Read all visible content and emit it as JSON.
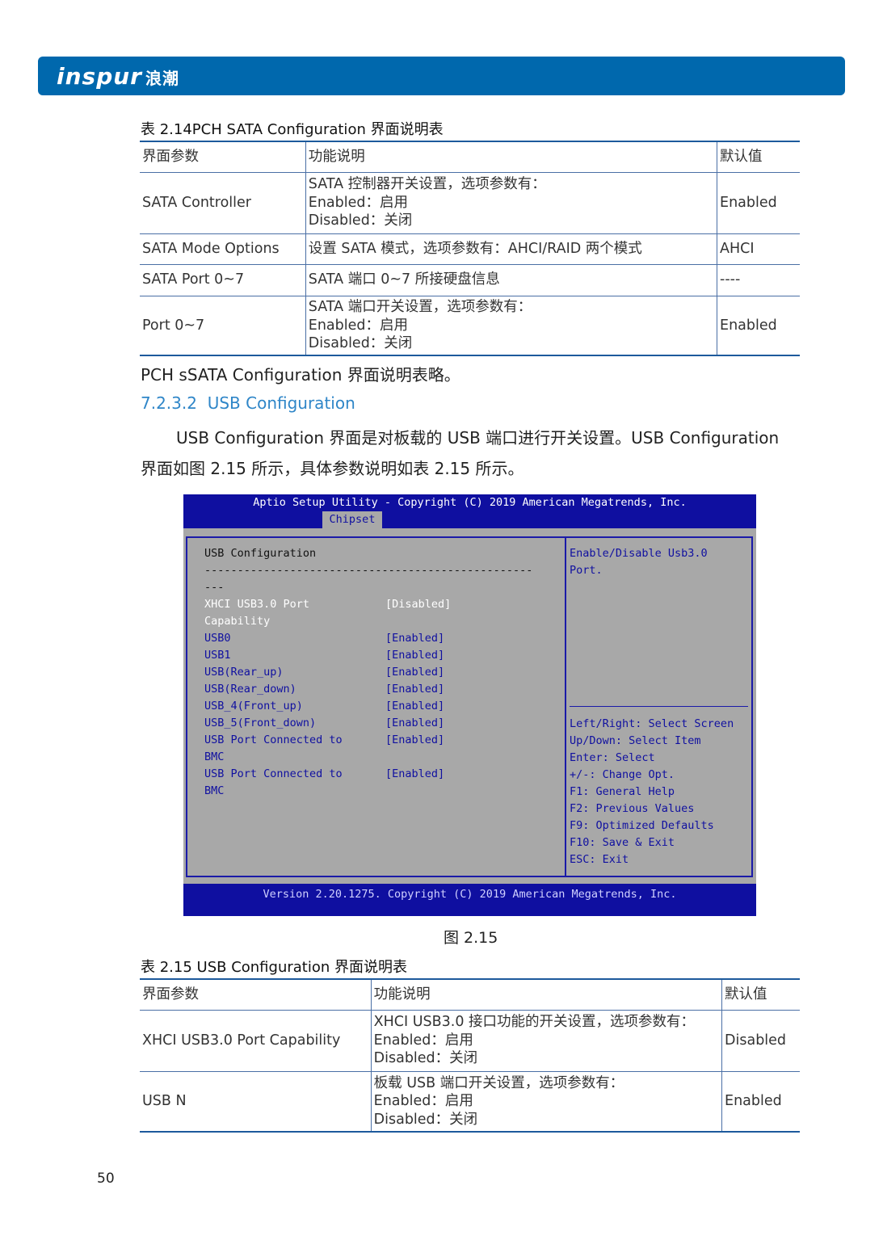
{
  "header": {
    "logo": "inspur",
    "logo_cn": "浪潮",
    "brand_color": "#0068ad"
  },
  "table1": {
    "caption": "表 2.14PCH SATA Configuration 界面说明表",
    "headers": [
      "界面参数",
      "功能说明",
      "默认值"
    ],
    "rows": [
      {
        "param": "SATA Controller",
        "desc": [
          "SATA 控制器开关设置，选项参数有：",
          "Enabled：启用",
          "Disabled：关闭"
        ],
        "default": "Enabled"
      },
      {
        "param": "SATA Mode Options",
        "desc": [
          "设置 SATA 模式，选项参数有：AHCI/RAID 两个模式"
        ],
        "default": "AHCI"
      },
      {
        "param": "SATA Port 0~7",
        "desc": [
          "SATA 端口 0~7 所接硬盘信息"
        ],
        "default": "----"
      },
      {
        "param": "Port 0~7",
        "desc": [
          "SATA 端口开关设置，选项参数有：",
          "Enabled：启用",
          "Disabled：关闭"
        ],
        "default": "Enabled"
      }
    ]
  },
  "note": "PCH sSATA Configuration 界面说明表略。",
  "section": {
    "number": "7.2.3.2",
    "title": "USB Configuration"
  },
  "para": [
    "USB Configuration 界面是对板载的 USB 端口进行开关设置。USB Configuration",
    "界面如图 2.15 所示，具体参数说明如表 2.15 所示。"
  ],
  "bios": {
    "title": "Aptio Setup Utility - Copyright (C) 2019 American Megatrends, Inc.",
    "tab": "Chipset",
    "heading": "USB Configuration",
    "separator": "--------------------------------------------------",
    "separator2": "---",
    "items": [
      {
        "label": "XHCI USB3.0 Port",
        "label2": "Capability",
        "value": "[Disabled]",
        "selected": true
      },
      {
        "label": "USB0",
        "value": "[Enabled]"
      },
      {
        "label": "USB1",
        "value": "[Enabled]"
      },
      {
        "label": "USB(Rear_up)",
        "value": "[Enabled]"
      },
      {
        "label": "USB(Rear_down)",
        "value": "[Enabled]"
      },
      {
        "label": "USB_4(Front_up)",
        "value": "[Enabled]"
      },
      {
        "label": "USB_5(Front_down)",
        "value": "[Enabled]"
      },
      {
        "label": "USB Port Connected to",
        "label2": "BMC",
        "value": "[Enabled]"
      },
      {
        "label": "USB Port Connected to",
        "label2": "BMC",
        "value": "[Enabled]"
      }
    ],
    "help": [
      "Enable/Disable Usb3.0",
      "Port."
    ],
    "keys": [
      "Left/Right: Select Screen",
      "Up/Down: Select Item",
      "Enter: Select",
      "+/-: Change Opt.",
      "F1: General Help",
      "F2: Previous Values",
      "F9: Optimized Defaults",
      "F10: Save & Exit",
      "ESC: Exit"
    ],
    "footer": "Version 2.20.1275. Copyright (C) 2019 American Megatrends, Inc."
  },
  "figure_caption": "图 2.15",
  "table2": {
    "caption": "表 2.15 USB Configuration 界面说明表",
    "headers": [
      "界面参数",
      "功能说明",
      "默认值"
    ],
    "rows": [
      {
        "param": "XHCI USB3.0 Port Capability",
        "desc": [
          "XHCI USB3.0 接口功能的开关设置，选项参数有：",
          "Enabled：启用",
          "Disabled：关闭"
        ],
        "default": "Disabled"
      },
      {
        "param": "USB N",
        "desc": [
          "板载 USB 端口开关设置，选项参数有：",
          "Enabled：启用",
          "Disabled：关闭"
        ],
        "default": "Enabled"
      }
    ]
  },
  "page_number": "50"
}
